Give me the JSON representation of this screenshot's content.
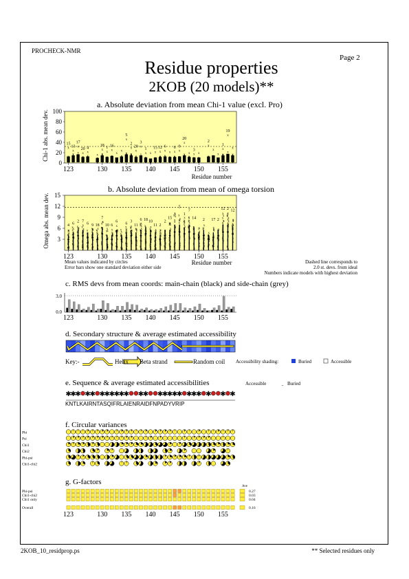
{
  "header": {
    "program": "PROCHECK-NMR",
    "page": "Page  2",
    "title": "Residue properties",
    "subtitle": "2KOB (20 models)**"
  },
  "footer": {
    "filename": "2KOB_10_residprop.ps",
    "note": "** Selected residues only"
  },
  "panel_a": {
    "title": "a. Absolute deviation from mean Chi-1 value (excl. Pro)",
    "ylabel": "Chi-1 abs. mean dev.",
    "yticks": [
      "100",
      "80",
      "60",
      "40",
      "20",
      "0"
    ],
    "xlabel": "Residue number",
    "xticks": [
      "123",
      "130",
      "135",
      "140",
      "145",
      "150",
      "155"
    ]
  },
  "panel_b": {
    "title": "b. Absolute deviation from mean of omega torsion",
    "ylabel": "Omega abs. mean dev.",
    "yticks": [
      "15",
      "12",
      "9",
      "6",
      "3"
    ],
    "xlabel": "Residue number",
    "xticks": [
      "123",
      "130",
      "135",
      "140",
      "145",
      "150",
      "155"
    ],
    "note_left_1": "Mean values indicated by circles",
    "note_left_2": "Error bars show one standard deviation either side",
    "note_right_1": "Dashed line corresponds to",
    "note_right_2": "2.0 st. devs. from ideal",
    "note_right_3": "Numbers indicate models with highest deviation"
  },
  "panel_c": {
    "title": "c. RMS devs from mean coords: main-chain (black) and side-chain (grey)",
    "yticks": [
      "3.0",
      "0.0"
    ],
    "xticks": [
      "123",
      "130",
      "135",
      "140",
      "145",
      "150",
      "155"
    ]
  },
  "panel_d": {
    "title": "d. Secondary structure & average estimated accessibility",
    "key_label": "Key:-",
    "helix_label": "Helix",
    "strand_label": "Beta strand",
    "coil_label": "Random coil",
    "shading_label": "Accessibility shading:",
    "buried_label": "Buried",
    "accessible_label": "Accessible"
  },
  "panel_e": {
    "title": "e. Sequence & average estimated accessibilities",
    "accessible_label": "Accessible",
    "buried_label": "Buried",
    "sequence": "KNTLKAIRNTASQIFRLAIENRAIDFNPADYVRIP"
  },
  "panel_f": {
    "title": "f. Circular variances",
    "rows": [
      "Phi",
      "Psi",
      "Chi1",
      "Chi2",
      "Phi-psi",
      "Chi1-chi2"
    ]
  },
  "panel_g": {
    "title": "g. G-factors",
    "ave_label": "Ave",
    "rows": [
      {
        "label": "Phi-psi",
        "ave": "0.27"
      },
      {
        "label": "Chi1-chi2",
        "ave": "0.03"
      },
      {
        "label": "Chi1 only",
        "ave": "0.04"
      },
      {
        "label": "Overall",
        "ave": "0.16"
      }
    ],
    "xticks": [
      "123",
      "130",
      "135",
      "140",
      "145",
      "150",
      "155"
    ]
  },
  "chart_data": [
    {
      "type": "scatter",
      "title": "a. Absolute deviation from mean Chi-1 value (excl. Pro)",
      "ylabel": "Chi-1 abs. mean dev.",
      "xlabel": "Residue number",
      "ylim": [
        0,
        100
      ],
      "threshold": 32,
      "x": [
        123,
        124,
        125,
        126,
        127,
        128,
        129,
        130,
        131,
        132,
        133,
        134,
        135,
        136,
        137,
        138,
        139,
        140,
        141,
        142,
        143,
        144,
        145,
        146,
        147,
        148,
        149,
        150,
        151,
        152,
        153,
        154,
        155,
        156,
        157
      ],
      "values": [
        10,
        12,
        14,
        9,
        10,
        0,
        7,
        12,
        9,
        11,
        8,
        10,
        14,
        12,
        9,
        12,
        8,
        6,
        8,
        9,
        10,
        9,
        9,
        10,
        12,
        9,
        8,
        8,
        0,
        10,
        12,
        8,
        12,
        15,
        12
      ],
      "max_values": [
        30,
        25,
        33,
        20,
        22,
        0,
        17,
        27,
        23,
        26,
        20,
        25,
        47,
        30,
        25,
        33,
        20,
        20,
        22,
        23,
        25,
        22,
        23,
        25,
        40,
        20,
        18,
        20,
        0,
        35,
        27,
        18,
        28,
        55,
        30
      ],
      "labels": [
        "15",
        "13",
        "17",
        "20",
        "4",
        "",
        "",
        "18",
        "1",
        "16",
        "",
        "",
        "5",
        "2",
        "20",
        "3",
        "1",
        "",
        "15",
        "12",
        "6",
        "",
        "6",
        "9",
        "20",
        "",
        "3",
        "",
        "",
        "2",
        "",
        "",
        "1",
        "19",
        ""
      ]
    },
    {
      "type": "scatter",
      "title": "b. Absolute deviation from mean of omega torsion",
      "ylabel": "Omega abs. mean dev.",
      "xlabel": "Residue number",
      "ylim": [
        0,
        15
      ],
      "threshold": 11.7,
      "x": [
        123,
        124,
        125,
        126,
        127,
        128,
        129,
        130,
        131,
        132,
        133,
        134,
        135,
        136,
        137,
        138,
        139,
        140,
        141,
        142,
        143,
        144,
        145,
        146,
        147,
        148,
        149,
        150,
        151,
        152,
        153,
        154,
        155,
        156,
        157
      ],
      "values": [
        3,
        3.5,
        4,
        4,
        3.5,
        3.5,
        3,
        4.5,
        3,
        3,
        4,
        3,
        3.5,
        4,
        3.5,
        4,
        4.5,
        4,
        3.5,
        3,
        4,
        4,
        5,
        5,
        4.5,
        5,
        4.5,
        3.5,
        4,
        3,
        3.5,
        4,
        5,
        5,
        4.5
      ],
      "max_values": [
        6,
        6.5,
        7,
        7,
        6.5,
        6,
        6,
        8,
        6,
        6,
        7,
        6,
        6.5,
        7,
        6,
        7.5,
        7.5,
        7,
        6,
        6,
        7,
        8,
        11,
        11,
        9,
        10,
        8,
        6.5,
        7.5,
        5,
        7.5,
        7.5,
        10.5,
        10.5,
        10
      ],
      "labels": [
        "4",
        "6",
        "2",
        "7",
        "6",
        "9",
        "18",
        "7",
        "10",
        "6",
        "6",
        "",
        "6",
        "3",
        "11",
        "6",
        "18",
        "10",
        "11",
        "2",
        "2",
        "15",
        "",
        "5",
        "1",
        "7",
        "14",
        "",
        "2",
        "",
        "17",
        "2",
        "12",
        "2",
        "12"
      ]
    },
    {
      "type": "bar",
      "title": "c. RMS devs from mean coords: main-chain (black) and side-chain (grey)",
      "ylim": [
        0,
        3.5
      ],
      "x": [
        123,
        124,
        125,
        126,
        127,
        128,
        129,
        130,
        131,
        132,
        133,
        134,
        135,
        136,
        137,
        138,
        139,
        140,
        141,
        142,
        143,
        144,
        145,
        146,
        147,
        148,
        149,
        150,
        151,
        152,
        153,
        154,
        155,
        156,
        157
      ],
      "series": [
        {
          "name": "main-chain",
          "values": [
            0.8,
            0.6,
            0.5,
            0.4,
            0.4,
            0.4,
            0.3,
            0.6,
            0.4,
            0.3,
            0.4,
            0.3,
            0.4,
            0.5,
            0.4,
            0.3,
            0.4,
            0.3,
            0.3,
            0.3,
            0.3,
            0.3,
            0.3,
            0.3,
            0.3,
            0.3,
            0.3,
            0.4,
            0.3,
            0.3,
            0.4,
            0.4,
            0.3,
            0.5,
            0.6
          ]
        },
        {
          "name": "side-chain",
          "values": [
            2.3,
            1.9,
            1.4,
            0.6,
            0.9,
            1.5,
            0.6,
            2.1,
            1.6,
            0.5,
            1.1,
            1.1,
            1.8,
            1.4,
            1.3,
            0.6,
            0.8,
            0.5,
            0.5,
            0.7,
            1.0,
            1.3,
            1.6,
            1.6,
            0.8,
            0.7,
            1.0,
            1.5,
            0.7,
            0.3,
            0.8,
            1.2,
            2.9,
            0.9,
            1.0
          ]
        }
      ]
    },
    {
      "type": "heatmap",
      "title": "g. G-factors",
      "x": [
        123,
        124,
        125,
        126,
        127,
        128,
        129,
        130,
        131,
        132,
        133,
        134,
        135,
        136,
        137,
        138,
        139,
        140,
        141,
        142,
        143,
        144,
        145,
        146,
        147,
        148,
        149,
        150,
        151,
        152,
        153,
        154,
        155,
        156,
        157
      ],
      "series": [
        {
          "name": "Phi-psi",
          "values": [
            0.3,
            0.3,
            0.3,
            0.3,
            0.3,
            0.3,
            0.3,
            0.3,
            0.3,
            0.3,
            0.3,
            0.3,
            0.3,
            0.3,
            0.3,
            0.3,
            0.3,
            0.3,
            0.3,
            0.3,
            0.3,
            0.3,
            -0.5,
            -0.5,
            0.3,
            0.3,
            0.3,
            0.3,
            0.3,
            0.3,
            0.3,
            0.3,
            0.3,
            0.3,
            0.3
          ]
        },
        {
          "name": "Chi1-chi2",
          "values": [
            0.1,
            0.1,
            0.1,
            0.1,
            0.1,
            0.1,
            0.1,
            0.1,
            0.1,
            0.1,
            0.1,
            0.1,
            0.1,
            0.1,
            0.1,
            0.1,
            0.1,
            0.1,
            0.1,
            0.1,
            0.1,
            0.1,
            -0.3,
            0.1,
            0.1,
            0.1,
            0.1,
            0.1,
            0.1,
            0.1,
            0.1,
            0.1,
            0.1,
            0.1,
            0.1
          ]
        },
        {
          "name": "Chi1 only",
          "values": [
            0.0,
            0.0,
            0.0,
            0.0,
            0.0,
            0.0,
            0.0,
            0.0,
            0.0,
            0.0,
            0.0,
            0.0,
            0.0,
            0.0,
            0.0,
            0.0,
            0.0,
            0.0,
            0.0,
            0.0,
            0.0,
            0.0,
            0.0,
            0.0,
            0.0,
            0.0,
            0.0,
            0.0,
            0.0,
            0.0,
            0.0,
            0.0,
            0.0,
            0.0,
            0.0
          ]
        },
        {
          "name": "Overall",
          "values": [
            0.2,
            0.2,
            0.2,
            0.2,
            0.2,
            0.2,
            0.2,
            0.2,
            0.2,
            0.2,
            0.2,
            0.2,
            0.2,
            0.2,
            0.2,
            0.2,
            0.2,
            0.2,
            0.2,
            0.2,
            0.2,
            0.2,
            -0.2,
            -0.1,
            0.2,
            0.2,
            0.2,
            0.2,
            0.2,
            0.2,
            0.2,
            0.2,
            0.2,
            0.2,
            0.2
          ]
        }
      ]
    }
  ],
  "colors": {
    "panel_bg": "#ffffa8",
    "helix_blue": "#4060f0",
    "buried_red": "#d02020",
    "gfactor_yellow": "#ffee40",
    "gfactor_orange": "#ffa040"
  }
}
